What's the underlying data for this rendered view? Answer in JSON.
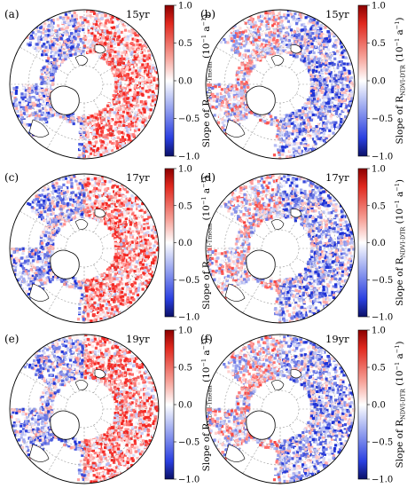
{
  "figure": {
    "panels": [
      {
        "label": "(a)",
        "period": "15yr",
        "variable": "NDVI-Tmean"
      },
      {
        "label": "(b)",
        "period": "15yr",
        "variable": "NDVI-DTR"
      },
      {
        "label": "(c)",
        "period": "17yr",
        "variable": "NDVI-Tmean"
      },
      {
        "label": "(d)",
        "period": "17yr",
        "variable": "NDVI-DTR"
      },
      {
        "label": "(e)",
        "period": "19yr",
        "variable": "NDVI-Tmean"
      },
      {
        "label": "(f)",
        "period": "19yr",
        "variable": "NDVI-DTR"
      }
    ],
    "colorbar": {
      "ticks": [
        "1.0",
        "0.5",
        "0.0",
        "−0.5",
        "−1.0"
      ],
      "title_prefix": "Slope of R",
      "unit_open": "(10",
      "unit_sup": "−1",
      "unit_close": " a",
      "unit_sup2": "−1",
      "unit_end": ")",
      "colors": {
        "high": "#b2182b",
        "mid": "#ffffff",
        "low": "#1a2a99"
      }
    }
  },
  "chart_data": {
    "type": "heatmap",
    "projection": "north polar stereographic",
    "vmin": -1.0,
    "vmax": 1.0,
    "colorbar_ticks": [
      1.0,
      0.5,
      0.0,
      -0.5,
      -1.0
    ],
    "colormap": "blue-white-red"
  }
}
